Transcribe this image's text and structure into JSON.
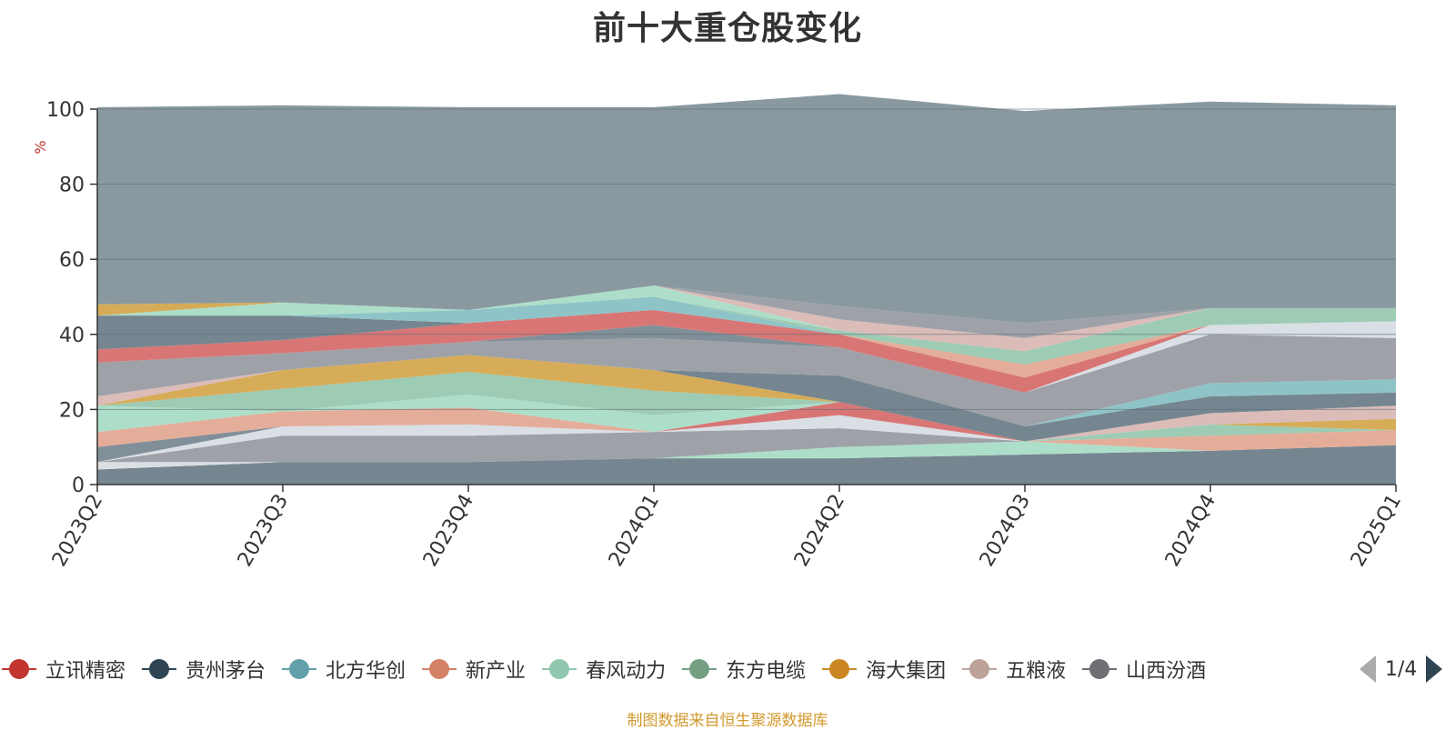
{
  "title": "前十大重仓股变化",
  "source": "制图数据来自恒生聚源数据库",
  "pager": {
    "text": "1/4"
  },
  "chart_data": {
    "type": "area",
    "stacked": true,
    "ylabel": "%",
    "ylim": [
      0,
      100
    ],
    "yticks": [
      0,
      20,
      40,
      60,
      80,
      100
    ],
    "grid": true,
    "x": [
      "2023Q2",
      "2023Q3",
      "2023Q4",
      "2024Q1",
      "2024Q2",
      "2024Q3",
      "2024Q4",
      "2025Q1"
    ],
    "series": [
      {
        "name": "",
        "color": "#6e7f8a",
        "values": [
          4,
          6,
          6,
          7,
          7,
          8,
          9,
          10.5
        ]
      },
      {
        "name": "",
        "color": "#d9dde1",
        "values": [
          2,
          0,
          0,
          0,
          0,
          0,
          0,
          0
        ]
      },
      {
        "name": "",
        "color": "#a9dcc6",
        "values": [
          0,
          0,
          0,
          0,
          3,
          3.5,
          0,
          0
        ]
      },
      {
        "name": "",
        "color": "#999da3",
        "values": [
          0,
          7,
          7,
          7,
          5,
          0,
          0,
          0
        ]
      },
      {
        "name": "",
        "color": "#e3a994",
        "values": [
          0,
          0,
          0,
          0,
          0,
          0,
          4,
          4
        ]
      },
      {
        "name": "",
        "color": "#d7dde4",
        "values": [
          0,
          2.5,
          3,
          0,
          3.5,
          0,
          0,
          0
        ]
      },
      {
        "name": "",
        "color": "#98c8b0",
        "values": [
          0,
          0,
          0,
          0,
          0,
          0,
          3,
          0
        ]
      },
      {
        "name": "",
        "color": "#d4a84f",
        "values": [
          0,
          0,
          0,
          0,
          0,
          0,
          0,
          3
        ]
      },
      {
        "name": "",
        "color": "#d9b8b5",
        "values": [
          0,
          0,
          0,
          0,
          0,
          0,
          3,
          3.5
        ]
      },
      {
        "name": "",
        "color": "#d66f6e",
        "values": [
          0,
          0,
          0,
          0,
          3.5,
          0,
          0,
          0
        ]
      },
      {
        "name": "",
        "color": "#7a8993",
        "values": [
          4,
          0,
          0,
          0,
          0,
          0,
          0,
          0
        ]
      },
      {
        "name": "",
        "color": "#e3a994",
        "values": [
          4,
          4,
          4.5,
          0,
          0,
          0,
          0,
          0
        ]
      },
      {
        "name": "",
        "color": "#a9dcc6",
        "values": [
          7,
          0,
          3.5,
          4.5,
          0,
          0,
          0,
          0
        ]
      },
      {
        "name": "",
        "color": "#98c8b0",
        "values": [
          0,
          6,
          6,
          6.5,
          0,
          0,
          0,
          0
        ]
      },
      {
        "name": "",
        "color": "#d4a84f",
        "values": [
          0,
          5,
          4.5,
          5.5,
          0,
          0,
          0,
          0
        ]
      },
      {
        "name": "",
        "color": "#6e7f8a",
        "values": [
          0,
          0,
          0,
          0,
          7,
          4,
          4.5,
          3.5
        ]
      },
      {
        "name": "",
        "color": "#88c1c4",
        "values": [
          0,
          0,
          0,
          0,
          0,
          0,
          3.5,
          3.5
        ]
      },
      {
        "name": "",
        "color": "#d9b8b5",
        "values": [
          2.5,
          0,
          0,
          0,
          0,
          0,
          0,
          0
        ]
      },
      {
        "name": "",
        "color": "#999da3",
        "values": [
          9,
          4.5,
          3.5,
          8.5,
          7.5,
          9,
          13,
          11
        ]
      },
      {
        "name": "",
        "color": "#d7dde4",
        "values": [
          0,
          0,
          0,
          0,
          0,
          0,
          2.5,
          4.5
        ]
      },
      {
        "name": "",
        "color": "#7a8993",
        "values": [
          0,
          0,
          0,
          3.5,
          0,
          0,
          0,
          0
        ]
      },
      {
        "name": "",
        "color": "#d66f6e",
        "values": [
          3.5,
          3.5,
          5,
          4,
          3.5,
          4,
          0,
          0
        ]
      },
      {
        "name": "",
        "color": "#e3a994",
        "values": [
          0,
          0,
          0,
          0,
          0,
          3.5,
          0,
          0
        ]
      },
      {
        "name": "",
        "color": "#6e7f8a",
        "values": [
          9,
          6.5,
          0,
          0,
          0,
          0,
          0,
          0
        ]
      },
      {
        "name": "",
        "color": "#88c1c4",
        "values": [
          0,
          0,
          3.5,
          3.5,
          0,
          0,
          0,
          0
        ]
      },
      {
        "name": "",
        "color": "#98c8b0",
        "values": [
          0,
          0,
          0,
          0,
          1,
          3.5,
          4.5,
          3.5
        ]
      },
      {
        "name": "",
        "color": "#a9dcc6",
        "values": [
          0,
          3.5,
          0,
          3,
          0,
          0,
          0,
          0
        ]
      },
      {
        "name": "",
        "color": "#d4a84f",
        "values": [
          3,
          0,
          0,
          0,
          0,
          0,
          0,
          0
        ]
      },
      {
        "name": "",
        "color": "#d9b8b5",
        "values": [
          0,
          0,
          0,
          0,
          3,
          3.5,
          0,
          0
        ]
      },
      {
        "name": "",
        "color": "#999da3",
        "values": [
          0,
          0,
          0,
          0,
          3.5,
          4,
          0,
          0
        ]
      },
      {
        "name": "",
        "color": "#84939b",
        "values": [
          52.5,
          52.5,
          54,
          47.5,
          56.5,
          56.5,
          55,
          54
        ]
      }
    ],
    "legend": [
      {
        "name": "立讯精密",
        "color": "#c23531"
      },
      {
        "name": "贵州茅台",
        "color": "#2f4554"
      },
      {
        "name": "北方华创",
        "color": "#61a0a8"
      },
      {
        "name": "新产业",
        "color": "#d48265"
      },
      {
        "name": "春风动力",
        "color": "#91c7ae"
      },
      {
        "name": "东方电缆",
        "color": "#749f83"
      },
      {
        "name": "海大集团",
        "color": "#ca8622"
      },
      {
        "name": "五粮液",
        "color": "#bda29a"
      },
      {
        "name": "山西汾酒",
        "color": "#6e7074"
      }
    ]
  }
}
